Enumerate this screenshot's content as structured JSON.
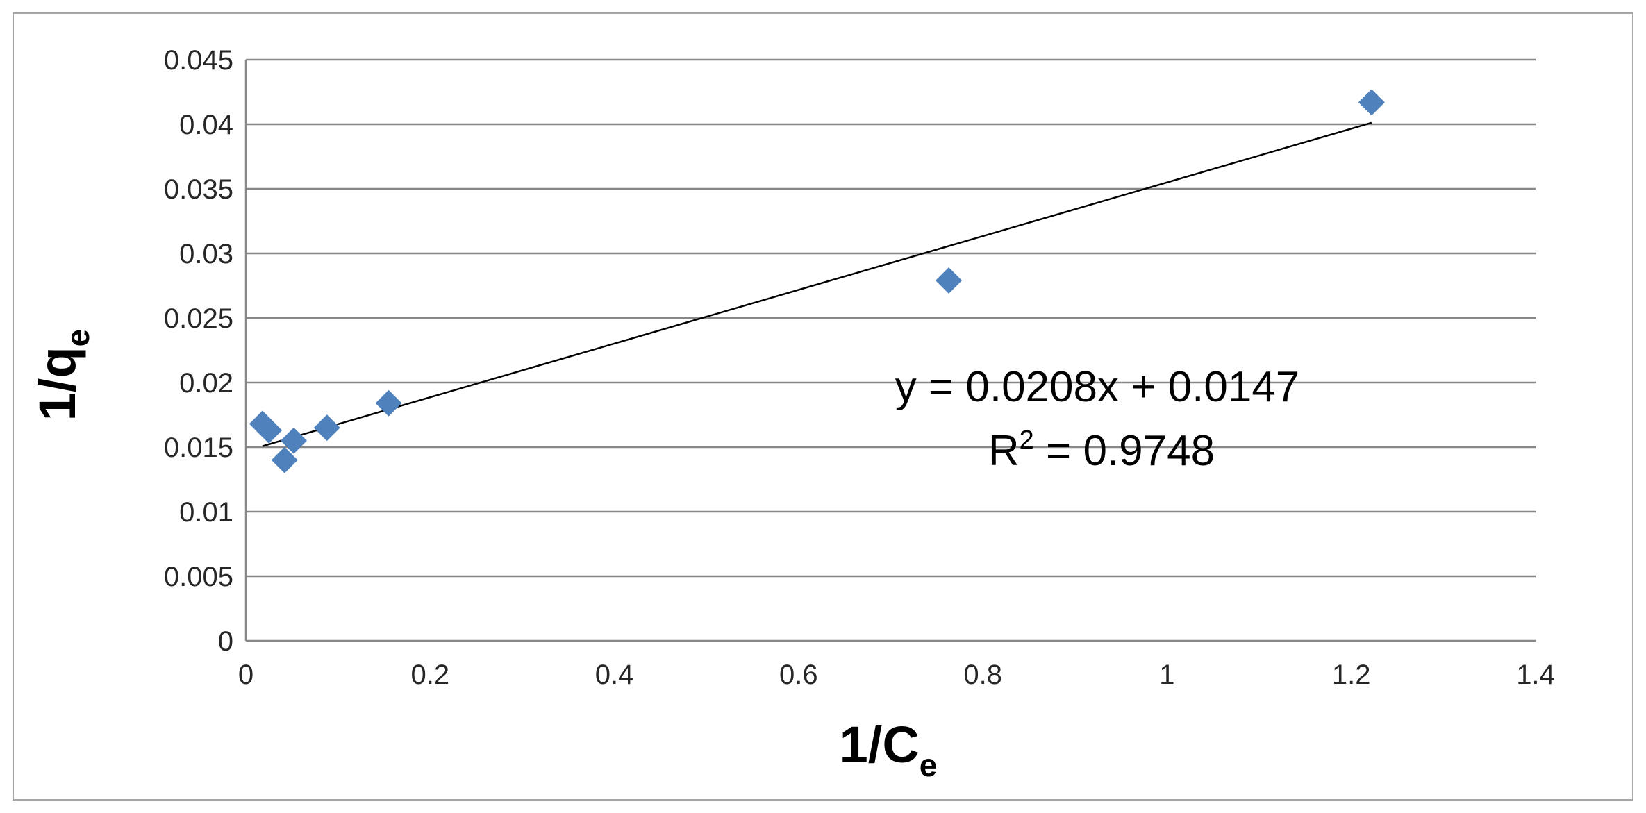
{
  "chart_data": {
    "type": "scatter",
    "xlabel": "1/Ce",
    "xlabel_parts": {
      "main": "1/C",
      "sub": "e"
    },
    "ylabel": "1/qe",
    "ylabel_parts": {
      "main": "1/q",
      "sub": "e"
    },
    "xlim": [
      0,
      1.4
    ],
    "ylim": [
      0,
      0.045
    ],
    "x_ticks": [
      0,
      0.2,
      0.4,
      0.6,
      0.8,
      1,
      1.2,
      1.4
    ],
    "x_tick_labels": [
      "0",
      "0.2",
      "0.4",
      "0.6",
      "0.8",
      "1",
      "1.2",
      "1.4"
    ],
    "y_ticks": [
      0,
      0.005,
      0.01,
      0.015,
      0.02,
      0.025,
      0.03,
      0.035,
      0.04,
      0.045
    ],
    "y_tick_labels": [
      "0",
      "0.005",
      "0.01",
      "0.015",
      "0.02",
      "0.025",
      "0.03",
      "0.035",
      "0.04",
      "0.045"
    ],
    "grid": {
      "horizontal": true,
      "vertical": false
    },
    "legend": "none",
    "series": [
      {
        "marker": "diamond",
        "color": "#4f81bd",
        "points": [
          {
            "x": 0.018,
            "y": 0.0168
          },
          {
            "x": 0.025,
            "y": 0.0163
          },
          {
            "x": 0.042,
            "y": 0.014
          },
          {
            "x": 0.052,
            "y": 0.0155
          },
          {
            "x": 0.088,
            "y": 0.0165
          },
          {
            "x": 0.155,
            "y": 0.0184
          },
          {
            "x": 0.763,
            "y": 0.0279
          },
          {
            "x": 1.222,
            "y": 0.0417
          }
        ]
      }
    ],
    "trendline": {
      "type": "linear",
      "slope": 0.0208,
      "intercept": 0.0147,
      "x_range": [
        0.018,
        1.222
      ],
      "color": "#000000",
      "equation": "y = 0.0208x + 0.0147",
      "r2_prefix": "R",
      "r2_exp": "2",
      "r2_suffix": " = 0.9748"
    }
  }
}
